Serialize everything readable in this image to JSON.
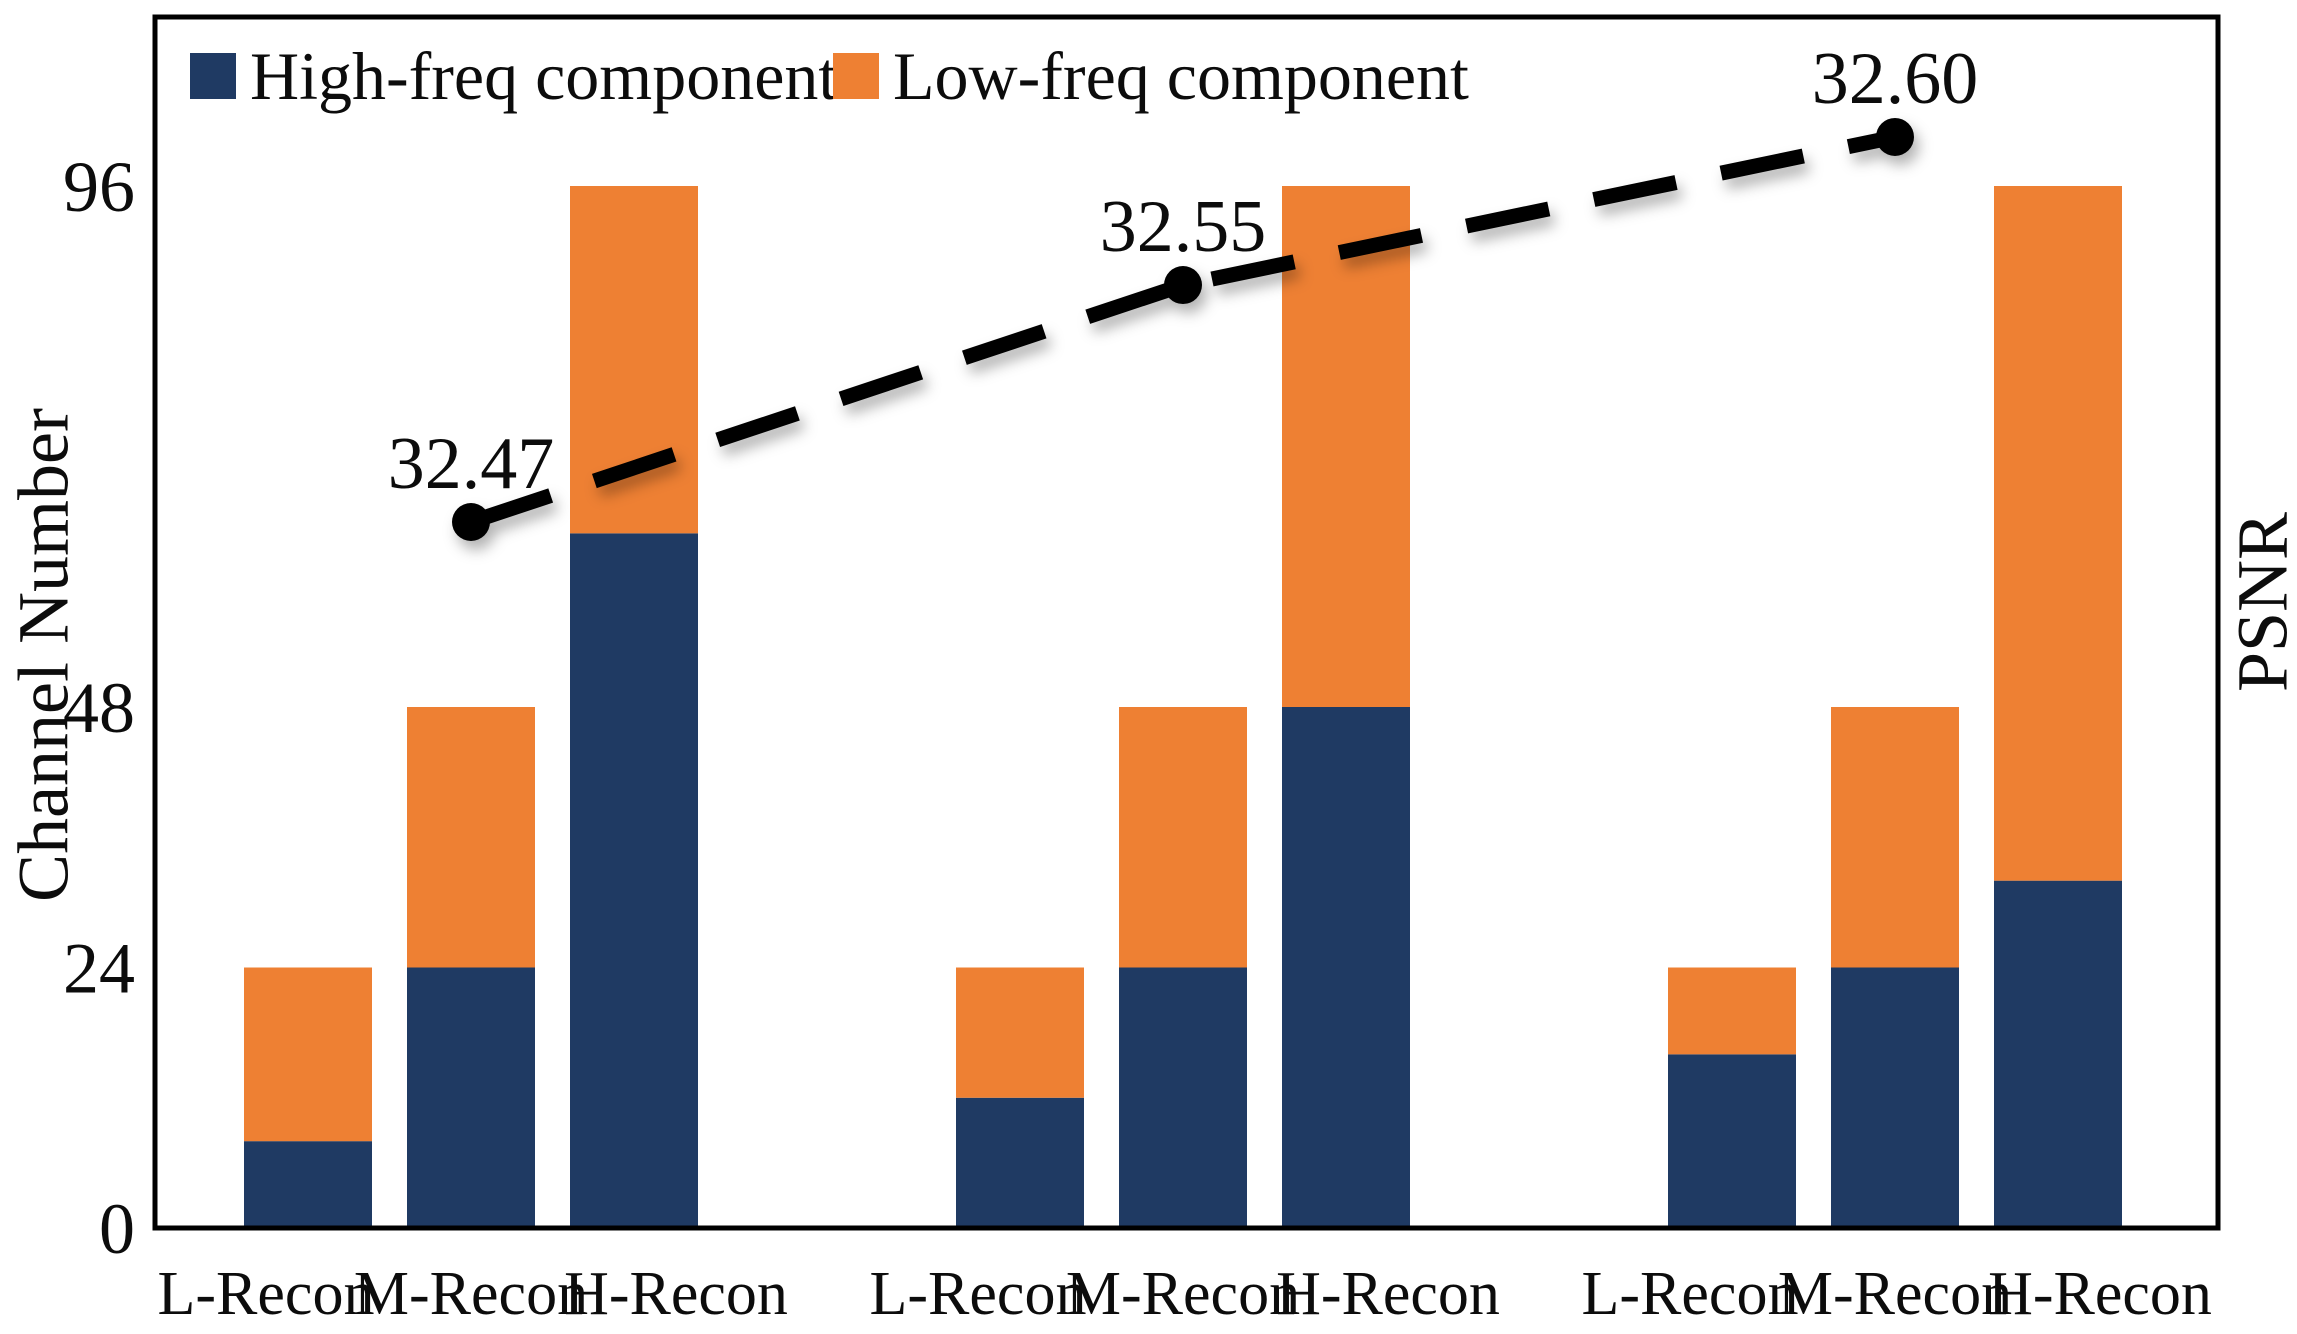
{
  "figure": {
    "background_color": "#ffffff",
    "frame_color": "#000000"
  },
  "legend": {
    "items": [
      {
        "label": "High-freq component",
        "color": "#1f3a63"
      },
      {
        "label": "Low-freq component",
        "color": "#ee8033"
      }
    ]
  },
  "chart_data": {
    "type": "bar",
    "subtype": "stacked-bar-with-line-overlay",
    "title": "",
    "xlabel": "",
    "ylabel": "Channel Number",
    "y2label": "PSNR",
    "yticks": [
      0,
      24,
      48,
      96
    ],
    "ylim": [
      0,
      112
    ],
    "grid": false,
    "legend_position": "top-left-inside",
    "categories": [
      "L-Recon",
      "M-Recon",
      "H-Recon",
      "L-Recon",
      "M-Recon",
      "H-Recon",
      "L-Recon",
      "M-Recon",
      "H-Recon"
    ],
    "series": [
      {
        "name": "High-freq component",
        "color": "#1f3a63",
        "values": [
          8,
          24,
          64,
          12,
          24,
          48,
          16,
          24,
          32
        ]
      },
      {
        "name": "Low-freq component",
        "color": "#ee8033",
        "values": [
          16,
          24,
          32,
          12,
          24,
          48,
          8,
          24,
          64
        ]
      }
    ],
    "stacked_totals": [
      24,
      48,
      96,
      24,
      48,
      96,
      24,
      48,
      96
    ],
    "line": {
      "name": "PSNR",
      "color": "#000000",
      "style": "dashed",
      "marker": "circle",
      "x_category_index": [
        1,
        4,
        7
      ],
      "values": [
        32.47,
        32.55,
        32.6
      ],
      "labels": [
        "32.47",
        "32.55",
        "32.60"
      ]
    }
  }
}
